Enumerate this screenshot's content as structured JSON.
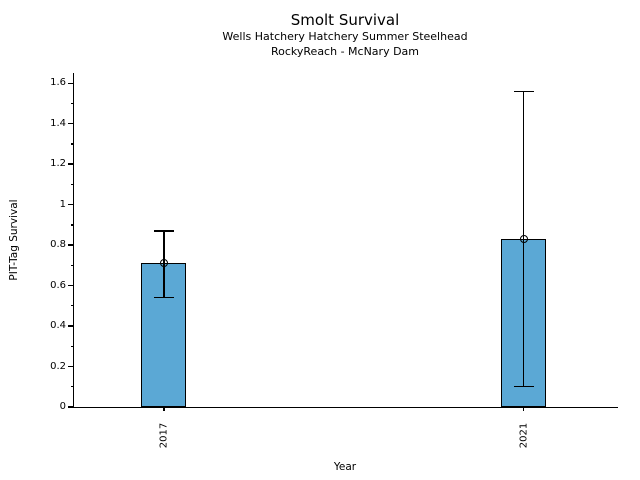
{
  "chart_data": {
    "type": "bar",
    "title": "Smolt Survival",
    "subtitle1": "Wells Hatchery Hatchery Summer Steelhead",
    "subtitle2": "RockyReach - McNary Dam",
    "xlabel": "Year",
    "ylabel": "PIT-Tag Survival",
    "categories": [
      "2017",
      "2021"
    ],
    "x": [
      2017,
      2021
    ],
    "values": [
      0.71,
      0.83
    ],
    "ci_low": [
      0.54,
      0.1
    ],
    "ci_high": [
      0.87,
      1.56
    ],
    "marker": "open-circle",
    "xlim": [
      2016,
      2022.05
    ],
    "ylim": [
      0,
      1.65
    ],
    "ytick_values": [
      0,
      0.2,
      0.4,
      0.6,
      0.8,
      1,
      1.2,
      1.4,
      1.6
    ],
    "ytick_labels": [
      "0",
      "0.2",
      "0.4",
      "0.6",
      "0.8",
      "1",
      "1.2",
      "1.4",
      "1.6"
    ],
    "y_minor_step": 0.1,
    "bar_width_years": 0.5,
    "bar_color": "#5ba8d5",
    "edge_color": "#000000",
    "error_color": "#000000",
    "grid": false,
    "legend": false
  }
}
